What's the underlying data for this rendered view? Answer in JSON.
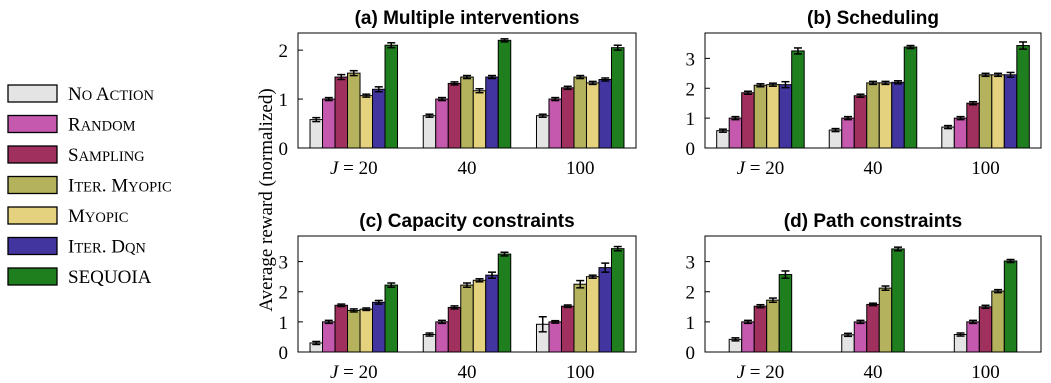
{
  "ylabel": "Average reward (normalized)",
  "legend": [
    {
      "label": "No Action",
      "color": "#e4e4e4"
    },
    {
      "label": "Random",
      "color": "#c459ad"
    },
    {
      "label": "Sampling",
      "color": "#a0305e"
    },
    {
      "label": "Iter. Myopic",
      "color": "#b5b25e"
    },
    {
      "label": "Myopic",
      "color": "#e5d27e"
    },
    {
      "label": "Iter. DQN",
      "color": "#4335a0"
    },
    {
      "label": "SEQUOIA",
      "color": "#1f7f1f"
    }
  ],
  "chart_data": [
    {
      "type": "bar",
      "title": "(a) Multiple interventions",
      "categories": [
        "J = 20",
        "40",
        "100"
      ],
      "ylim": [
        0,
        2.35
      ],
      "yticks": [
        0,
        1,
        2
      ],
      "series": [
        {
          "name": "No Action",
          "values": [
            0.58,
            0.66,
            0.66
          ],
          "errors": [
            0.04,
            0.0,
            0.0
          ]
        },
        {
          "name": "Random",
          "values": [
            1.0,
            1.0,
            1.0
          ],
          "errors": [
            0.03,
            0.0,
            0.0
          ]
        },
        {
          "name": "Sampling",
          "values": [
            1.45,
            1.32,
            1.23
          ],
          "errors": [
            0.05,
            0.0,
            0.0
          ]
        },
        {
          "name": "Iter. Myopic",
          "values": [
            1.53,
            1.45,
            1.45
          ],
          "errors": [
            0.05,
            0.0,
            0.0
          ]
        },
        {
          "name": "Myopic",
          "values": [
            1.07,
            1.17,
            1.33
          ],
          "errors": [
            0.03,
            0.04,
            0.0
          ]
        },
        {
          "name": "Iter. DQN",
          "values": [
            1.2,
            1.45,
            1.4
          ],
          "errors": [
            0.05,
            0.0,
            0.0
          ]
        },
        {
          "name": "SEQUOIA",
          "values": [
            2.1,
            2.2,
            2.05
          ],
          "errors": [
            0.05,
            0.0,
            0.05
          ]
        }
      ]
    },
    {
      "type": "bar",
      "title": "(b) Scheduling",
      "categories": [
        "J = 20",
        "40",
        "100"
      ],
      "ylim": [
        0,
        3.85
      ],
      "yticks": [
        0,
        1,
        2,
        3
      ],
      "series": [
        {
          "name": "No Action",
          "values": [
            0.58,
            0.6,
            0.7
          ],
          "errors": [
            0.0,
            0.0,
            0.0
          ]
        },
        {
          "name": "Random",
          "values": [
            1.0,
            1.0,
            1.0
          ],
          "errors": [
            0.0,
            0.0,
            0.0
          ]
        },
        {
          "name": "Sampling",
          "values": [
            1.85,
            1.75,
            1.5
          ],
          "errors": [
            0.0,
            0.0,
            0.0
          ]
        },
        {
          "name": "Iter. Myopic",
          "values": [
            2.1,
            2.18,
            2.45
          ],
          "errors": [
            0.05,
            0.0,
            0.0
          ]
        },
        {
          "name": "Myopic",
          "values": [
            2.12,
            2.18,
            2.45
          ],
          "errors": [
            0.0,
            0.0,
            0.0
          ]
        },
        {
          "name": "Iter. DQN",
          "values": [
            2.12,
            2.2,
            2.45
          ],
          "errors": [
            0.1,
            0.0,
            0.08
          ]
        },
        {
          "name": "SEQUOIA",
          "values": [
            3.25,
            3.38,
            3.43
          ],
          "errors": [
            0.1,
            0.0,
            0.12
          ]
        }
      ]
    },
    {
      "type": "bar",
      "title": "(c) Capacity constraints",
      "categories": [
        "J = 20",
        "40",
        "100"
      ],
      "ylim": [
        0,
        3.85
      ],
      "yticks": [
        0,
        1,
        2,
        3
      ],
      "series": [
        {
          "name": "No Action",
          "values": [
            0.3,
            0.58,
            0.92
          ],
          "errors": [
            0.0,
            0.0,
            0.25
          ]
        },
        {
          "name": "Random",
          "values": [
            1.0,
            1.0,
            1.0
          ],
          "errors": [
            0.0,
            0.0,
            0.04
          ]
        },
        {
          "name": "Sampling",
          "values": [
            1.55,
            1.48,
            1.52
          ],
          "errors": [
            0.04,
            0.0,
            0.04
          ]
        },
        {
          "name": "Iter. Myopic",
          "values": [
            1.38,
            2.22,
            2.25
          ],
          "errors": [
            0.05,
            0.07,
            0.12
          ]
        },
        {
          "name": "Myopic",
          "values": [
            1.42,
            2.38,
            2.5
          ],
          "errors": [
            0.04,
            0.0,
            0.0
          ]
        },
        {
          "name": "Iter. DQN",
          "values": [
            1.65,
            2.55,
            2.8
          ],
          "errors": [
            0.06,
            0.1,
            0.15
          ]
        },
        {
          "name": "SEQUOIA",
          "values": [
            2.22,
            3.25,
            3.43
          ],
          "errors": [
            0.07,
            0.06,
            0.07
          ]
        }
      ]
    },
    {
      "type": "bar",
      "title": "(d) Path constraints",
      "categories": [
        "J = 20",
        "40",
        "100"
      ],
      "ylim": [
        0,
        3.85
      ],
      "yticks": [
        0,
        1,
        2,
        3
      ],
      "series": [
        {
          "name": "No Action",
          "values": [
            0.42,
            0.57,
            0.58
          ],
          "errors": [
            0.0,
            0.0,
            0.0
          ]
        },
        {
          "name": "Random",
          "values": [
            1.0,
            1.0,
            1.0
          ],
          "errors": [
            0.0,
            0.0,
            0.0
          ]
        },
        {
          "name": "Sampling",
          "values": [
            1.52,
            1.58,
            1.5
          ],
          "errors": [
            0.0,
            0.04,
            0.0
          ]
        },
        {
          "name": "Iter. Myopic",
          "values": [
            1.72,
            2.12,
            2.02
          ],
          "errors": [
            0.07,
            0.07,
            0.0
          ]
        },
        {
          "name": "SEQUOIA",
          "values": [
            2.57,
            3.42,
            3.02
          ],
          "errors": [
            0.12,
            0.06,
            0.0
          ]
        }
      ]
    }
  ]
}
